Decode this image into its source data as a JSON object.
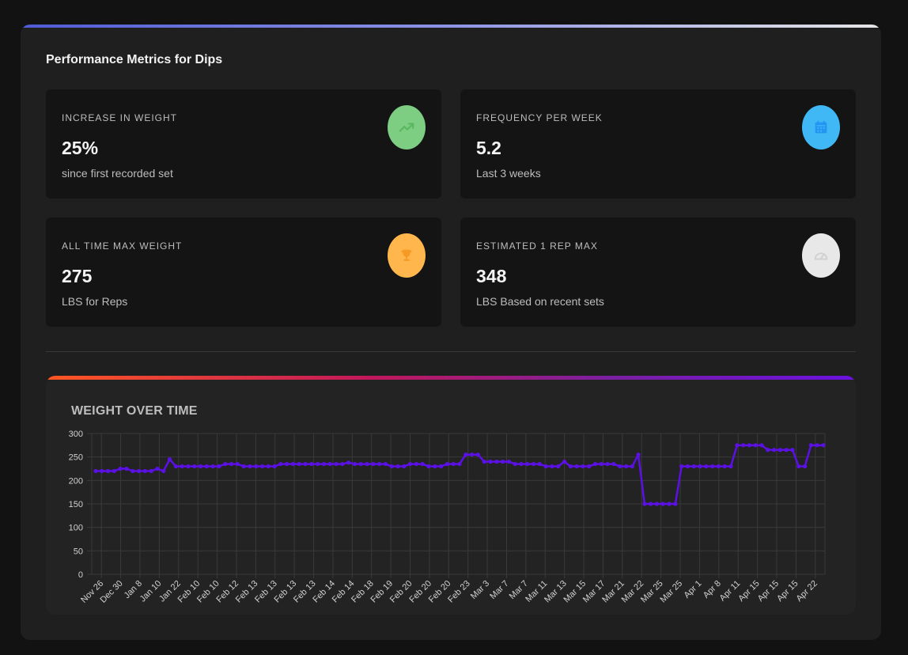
{
  "panel": {
    "title": "Performance Metrics for Dips",
    "accent_colors": [
      "#4f5bd5",
      "#e6e6e6"
    ]
  },
  "cards": [
    {
      "label": "INCREASE IN WEIGHT",
      "value": "25%",
      "sub": "since first recorded set",
      "icon": "trending-up-icon",
      "icon_bg": "#7dce82",
      "icon_fg": "#5bb860"
    },
    {
      "label": "FREQUENCY PER WEEK",
      "value": "5.2",
      "sub": "Last 3 weeks",
      "icon": "calendar-icon",
      "icon_bg": "#3fb8f5",
      "icon_fg": "#2196f3"
    },
    {
      "label": "ALL TIME MAX WEIGHT",
      "value": "275",
      "sub": "LBS for Reps",
      "icon": "trophy-icon",
      "icon_bg": "#ffb74d",
      "icon_fg": "#f59a23"
    },
    {
      "label": "ESTIMATED 1 REP MAX",
      "value": "348",
      "sub": "LBS Based on recent sets",
      "icon": "speedometer-icon",
      "icon_bg": "#e8e8e8",
      "icon_fg": "#cfcfcf"
    }
  ],
  "chart": {
    "title": "WEIGHT OVER TIME",
    "line_color": "#5b10e6",
    "accent_colors": [
      "#ff5722",
      "#6a11e0"
    ]
  },
  "chart_data": {
    "type": "line",
    "title": "WEIGHT OVER TIME",
    "xlabel": "",
    "ylabel": "",
    "ylim": [
      0,
      300
    ],
    "yticks": [
      0,
      50,
      100,
      150,
      200,
      250,
      300
    ],
    "grid": true,
    "x_tick_labels": [
      "Nov 26",
      "Dec 30",
      "Jan 8",
      "Jan 10",
      "Jan 22",
      "Feb 10",
      "Feb 10",
      "Feb 12",
      "Feb 13",
      "Feb 13",
      "Feb 13",
      "Feb 13",
      "Feb 14",
      "Feb 14",
      "Feb 18",
      "Feb 19",
      "Feb 20",
      "Feb 20",
      "Feb 20",
      "Feb 23",
      "Mar 3",
      "Mar 7",
      "Mar 7",
      "Mar 11",
      "Mar 13",
      "Mar 15",
      "Mar 17",
      "Mar 21",
      "Mar 22",
      "Mar 25",
      "Mar 25",
      "Apr 1",
      "Apr 8",
      "Apr 11",
      "Apr 15",
      "Apr 15",
      "Apr 15",
      "Apr 22"
    ],
    "series": [
      {
        "values": [
          220,
          220,
          220,
          220,
          225,
          225,
          220,
          220,
          220,
          220,
          225,
          220,
          245,
          230,
          230,
          230,
          230,
          230,
          230,
          230,
          230,
          235,
          235,
          235,
          230,
          230,
          230,
          230,
          230,
          230,
          235,
          235,
          235,
          235,
          235,
          235,
          235,
          235,
          235,
          235,
          235,
          238,
          235,
          235,
          235,
          235,
          235,
          235,
          230,
          230,
          230,
          235,
          235,
          235,
          230,
          230,
          230,
          235,
          235,
          235,
          255,
          255,
          255,
          240,
          240,
          240,
          240,
          240,
          235,
          235,
          235,
          235,
          235,
          230,
          230,
          230,
          240,
          230,
          230,
          230,
          230,
          235,
          235,
          235,
          235,
          230,
          230,
          230,
          255,
          150,
          150,
          150,
          150,
          150,
          150,
          230,
          230,
          230,
          230,
          230,
          230,
          230,
          230,
          230,
          275,
          275,
          275,
          275,
          275,
          265,
          265,
          265,
          265,
          265,
          230,
          230,
          275,
          275,
          275
        ]
      }
    ]
  }
}
